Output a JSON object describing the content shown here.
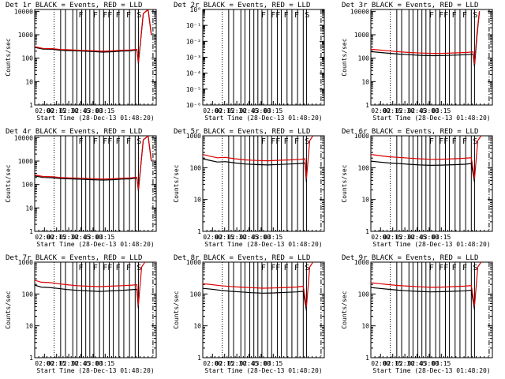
{
  "chart_data": [
    {
      "type": "line",
      "title": "Det 1r BLACK = Events, RED = LLD",
      "xlabel": "Start Time (28-Dec-13 01:48:20)",
      "ylabel": "Counts/sec",
      "xticks": [
        "02:00",
        "02:15",
        "02:30",
        "02:45",
        "03:00",
        "03:15"
      ],
      "yticks": [
        "1",
        "10",
        "100",
        "1000",
        "10000"
      ],
      "ylim": [
        1,
        12000
      ],
      "flags": [
        "F",
        "F",
        "FF",
        "F",
        "F",
        "S"
      ],
      "series": [
        {
          "name": "Events",
          "color": "#000000",
          "x": [
            0,
            10,
            22,
            32,
            44,
            58,
            72,
            84,
            96,
            108,
            118,
            126,
            128,
            134,
            140,
            144
          ],
          "y": [
            290,
            245,
            240,
            215,
            210,
            200,
            192,
            182,
            188,
            200,
            205,
            225,
            60,
            8000,
            12000,
            1000
          ]
        },
        {
          "name": "LLD",
          "color": "#dd0000",
          "x": [
            0,
            10,
            22,
            32,
            44,
            58,
            72,
            84,
            96,
            108,
            118,
            126,
            128,
            134,
            140,
            144
          ],
          "y": [
            310,
            262,
            255,
            235,
            228,
            215,
            208,
            198,
            205,
            218,
            222,
            240,
            65,
            8000,
            12000,
            1000
          ]
        }
      ]
    },
    {
      "type": "line",
      "title": "Det 2r BLACK = Events, RED = LLD",
      "xlabel": "Start Time (28-Dec-13 01:48:20)",
      "ylabel": "",
      "xticks": [
        "02:00",
        "02:15",
        "02:30",
        "02:45",
        "03:00",
        "03:15"
      ],
      "yticks": [
        "10⁻⁶",
        "10⁻⁵",
        "10⁻⁴",
        "10⁻³",
        "10⁻²",
        "10⁻¹",
        "10⁰"
      ],
      "ylim": [
        1e-06,
        1
      ],
      "flags": [
        "F",
        "FF",
        "F",
        "F",
        "S"
      ],
      "series": []
    },
    {
      "type": "line",
      "title": "Det 3r BLACK = Events, RED = LLD",
      "xlabel": "Start Time (28-Dec-13 01:48:20)",
      "ylabel": "Counts/sec",
      "xticks": [
        "02:00",
        "02:15",
        "02:30",
        "02:45",
        "03:00",
        "03:15"
      ],
      "yticks": [
        "1",
        "10",
        "100",
        "1000",
        "10000"
      ],
      "ylim": [
        1,
        12000
      ],
      "flags": [
        "F",
        "FF",
        "F",
        "F",
        "S"
      ],
      "series": [
        {
          "name": "Events",
          "color": "#000000",
          "x": [
            0,
            12,
            24,
            36,
            48,
            62,
            76,
            90,
            104,
            118,
            126,
            128,
            131,
            134
          ],
          "y": [
            190,
            175,
            160,
            148,
            140,
            132,
            128,
            130,
            135,
            140,
            150,
            45,
            900,
            10000
          ]
        },
        {
          "name": "LLD",
          "color": "#dd0000",
          "x": [
            0,
            12,
            24,
            36,
            48,
            62,
            76,
            90,
            104,
            118,
            126,
            128,
            131,
            134
          ],
          "y": [
            240,
            220,
            200,
            185,
            175,
            165,
            160,
            162,
            168,
            175,
            185,
            55,
            1200,
            10000
          ]
        }
      ]
    },
    {
      "type": "line",
      "title": "Det 4r BLACK = Events, RED = LLD",
      "xlabel": "Start Time (28-Dec-13 01:48:20)",
      "ylabel": "Counts/sec",
      "xticks": [
        "02:00",
        "02:15",
        "02:30",
        "02:45",
        "03:00",
        "03:15"
      ],
      "yticks": [
        "1",
        "10",
        "100",
        "1000",
        "10000"
      ],
      "ylim": [
        1,
        12000
      ],
      "flags": [
        "F",
        "F",
        "FF",
        "F",
        "F",
        "S"
      ],
      "series": [
        {
          "name": "Events",
          "color": "#000000",
          "x": [
            0,
            10,
            22,
            32,
            44,
            58,
            72,
            84,
            96,
            108,
            118,
            126,
            128,
            134,
            140,
            144
          ],
          "y": [
            230,
            200,
            195,
            180,
            175,
            168,
            160,
            155,
            160,
            170,
            175,
            190,
            55,
            8000,
            12000,
            1000
          ]
        },
        {
          "name": "LLD",
          "color": "#dd0000",
          "x": [
            0,
            10,
            22,
            32,
            44,
            58,
            72,
            84,
            96,
            108,
            118,
            126,
            128,
            134,
            140,
            144
          ],
          "y": [
            255,
            220,
            215,
            198,
            192,
            185,
            178,
            170,
            176,
            186,
            190,
            205,
            60,
            8000,
            12000,
            1000
          ]
        }
      ]
    },
    {
      "type": "line",
      "title": "Det 5r BLACK = Events, RED = LLD",
      "xlabel": "Start Time (28-Dec-13 01:48:20)",
      "ylabel": "Counts/sec",
      "xticks": [
        "02:00",
        "02:15",
        "02:30",
        "02:45",
        "03:00",
        "03:15"
      ],
      "yticks": [
        "1",
        "10",
        "100",
        "1000"
      ],
      "ylim": [
        1,
        1000
      ],
      "flags": [
        "F",
        "FF",
        "F",
        "F",
        "S"
      ],
      "series": [
        {
          "name": "Events",
          "color": "#000000",
          "x": [
            0,
            8,
            18,
            28,
            40,
            52,
            66,
            80,
            94,
            108,
            120,
            126,
            128
          ],
          "y": [
            190,
            170,
            150,
            155,
            140,
            130,
            125,
            122,
            126,
            130,
            135,
            140,
            35
          ]
        },
        {
          "name": "LLD",
          "color": "#dd0000",
          "x": [
            0,
            8,
            18,
            28,
            40,
            52,
            66,
            80,
            94,
            108,
            120,
            126,
            128,
            132,
            136
          ],
          "y": [
            260,
            230,
            205,
            210,
            190,
            175,
            168,
            165,
            170,
            175,
            182,
            190,
            45,
            700,
            1000
          ]
        }
      ]
    },
    {
      "type": "line",
      "title": "Det 6r BLACK = Events, RED = LLD",
      "xlabel": "Start Time (28-Dec-13 01:48:20)",
      "ylabel": "Counts/sec",
      "xticks": [
        "02:00",
        "02:15",
        "02:30",
        "02:45",
        "03:00",
        "03:15"
      ],
      "yticks": [
        "1",
        "10",
        "100",
        "1000"
      ],
      "ylim": [
        1,
        1000
      ],
      "flags": [
        "F",
        "FF",
        "F",
        "F",
        "S"
      ],
      "series": [
        {
          "name": "Events",
          "color": "#000000",
          "x": [
            0,
            10,
            22,
            34,
            46,
            60,
            74,
            88,
            102,
            116,
            124,
            128
          ],
          "y": [
            160,
            150,
            140,
            135,
            128,
            122,
            118,
            120,
            124,
            128,
            135,
            35
          ]
        },
        {
          "name": "LLD",
          "color": "#dd0000",
          "x": [
            0,
            10,
            22,
            34,
            46,
            60,
            74,
            88,
            102,
            116,
            124,
            128,
            132,
            136
          ],
          "y": [
            260,
            240,
            220,
            210,
            200,
            190,
            182,
            185,
            190,
            198,
            205,
            45,
            700,
            1000
          ]
        }
      ]
    },
    {
      "type": "line",
      "title": "Det 7r BLACK = Events, RED = LLD",
      "xlabel": "Start Time (28-Dec-13 01:48:20)",
      "ylabel": "Counts/sec",
      "xticks": [
        "02:00",
        "02:15",
        "02:30",
        "02:45",
        "03:00",
        "03:15"
      ],
      "yticks": [
        "1",
        "10",
        "100",
        "1000"
      ],
      "ylim": [
        1,
        1000
      ],
      "flags": [
        "F",
        "F",
        "FF",
        "F",
        "F",
        "S"
      ],
      "series": [
        {
          "name": "Events",
          "color": "#000000",
          "x": [
            0,
            8,
            18,
            28,
            40,
            52,
            66,
            80,
            94,
            108,
            120,
            126,
            128
          ],
          "y": [
            190,
            165,
            160,
            150,
            138,
            130,
            125,
            120,
            125,
            130,
            136,
            140,
            35
          ]
        },
        {
          "name": "LLD",
          "color": "#dd0000",
          "x": [
            0,
            8,
            18,
            28,
            40,
            52,
            66,
            80,
            94,
            108,
            120,
            126,
            128,
            132,
            136
          ],
          "y": [
            270,
            235,
            228,
            212,
            195,
            182,
            175,
            170,
            176,
            182,
            190,
            195,
            45,
            700,
            1000
          ]
        }
      ]
    },
    {
      "type": "line",
      "title": "Det 8r BLACK = Events, RED = LLD",
      "xlabel": "Start Time (28-Dec-13 01:48:20)",
      "ylabel": "Counts/sec",
      "xticks": [
        "02:00",
        "02:15",
        "02:30",
        "02:45",
        "03:00",
        "03:15"
      ],
      "yticks": [
        "1",
        "10",
        "100",
        "1000"
      ],
      "ylim": [
        1,
        1000
      ],
      "flags": [
        "F",
        "FF",
        "F",
        "F",
        "S"
      ],
      "series": [
        {
          "name": "Events",
          "color": "#000000",
          "x": [
            0,
            10,
            22,
            34,
            46,
            60,
            74,
            88,
            102,
            116,
            124,
            128
          ],
          "y": [
            150,
            142,
            130,
            122,
            116,
            110,
            106,
            108,
            112,
            116,
            122,
            30
          ]
        },
        {
          "name": "LLD",
          "color": "#dd0000",
          "x": [
            0,
            10,
            22,
            34,
            46,
            60,
            74,
            88,
            102,
            116,
            124,
            128,
            132,
            136
          ],
          "y": [
            210,
            198,
            182,
            172,
            165,
            158,
            152,
            155,
            160,
            166,
            175,
            40,
            700,
            1000
          ]
        }
      ]
    },
    {
      "type": "line",
      "title": "Det 9r BLACK = Events, RED = LLD",
      "xlabel": "Start Time (28-Dec-13 01:48:20)",
      "ylabel": "Counts/sec",
      "xticks": [
        "02:00",
        "02:15",
        "02:30",
        "02:45",
        "03:00",
        "03:15"
      ],
      "yticks": [
        "1",
        "10",
        "100",
        "1000"
      ],
      "ylim": [
        1,
        1000
      ],
      "flags": [
        "F",
        "FF",
        "F",
        "F",
        "S"
      ],
      "series": [
        {
          "name": "Events",
          "color": "#000000",
          "x": [
            0,
            10,
            22,
            34,
            46,
            60,
            74,
            88,
            102,
            116,
            124,
            128
          ],
          "y": [
            160,
            150,
            140,
            132,
            126,
            120,
            116,
            118,
            122,
            126,
            132,
            32
          ]
        },
        {
          "name": "LLD",
          "color": "#dd0000",
          "x": [
            0,
            10,
            22,
            34,
            46,
            60,
            74,
            88,
            102,
            116,
            124,
            128,
            132,
            136
          ],
          "y": [
            225,
            212,
            196,
            185,
            176,
            168,
            162,
            165,
            170,
            176,
            185,
            42,
            700,
            1000
          ]
        }
      ]
    }
  ]
}
